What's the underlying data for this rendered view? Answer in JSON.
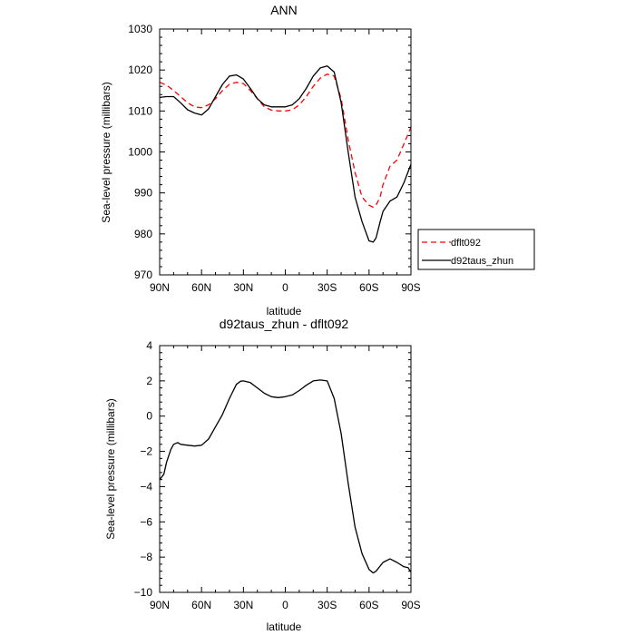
{
  "chart_data": [
    {
      "type": "line",
      "title": "ANN",
      "xlabel": "latitude",
      "ylabel": "Sea-level pressure (millibars)",
      "xlim": [
        90,
        -90
      ],
      "ylim": [
        970,
        1030
      ],
      "xticks": [
        90,
        60,
        30,
        0,
        -30,
        -60,
        -90
      ],
      "xtick_labels": [
        "90N",
        "60N",
        "30N",
        "0",
        "30S",
        "60S",
        "90S"
      ],
      "yticks": [
        970,
        980,
        990,
        1000,
        1010,
        1020,
        1030
      ],
      "ytick_labels": [
        "970",
        "980",
        "990",
        "1000",
        "1010",
        "1020",
        "1030"
      ],
      "legend": "right, outside plot",
      "series": [
        {
          "name": "dflt092",
          "color": "#ff0000",
          "dash": "dashed",
          "x": [
            90,
            85,
            80,
            75,
            70,
            65,
            60,
            55,
            50,
            45,
            40,
            35,
            30,
            25,
            20,
            15,
            10,
            5,
            0,
            -5,
            -10,
            -15,
            -20,
            -25,
            -30,
            -35,
            -40,
            -45,
            -50,
            -55,
            -60,
            -63,
            -65,
            -68,
            -70,
            -75,
            -80,
            -85,
            -90
          ],
          "values": [
            1017,
            1016.3,
            1015,
            1013.5,
            1012,
            1011,
            1010.8,
            1011.5,
            1013,
            1015,
            1016.5,
            1017,
            1016.7,
            1015,
            1013,
            1011,
            1010.2,
            1010,
            1010,
            1010.3,
            1011.5,
            1013.5,
            1016,
            1018,
            1019,
            1018.5,
            1013,
            1003,
            995,
            989,
            987,
            986.5,
            987,
            989,
            992,
            996.5,
            998,
            1002,
            1006
          ]
        },
        {
          "name": "d92taus_zhun",
          "color": "#000000",
          "dash": "solid",
          "x": [
            90,
            85,
            80,
            75,
            70,
            65,
            60,
            55,
            50,
            45,
            40,
            35,
            30,
            25,
            20,
            15,
            10,
            5,
            0,
            -5,
            -10,
            -15,
            -20,
            -25,
            -30,
            -35,
            -40,
            -45,
            -50,
            -55,
            -60,
            -63,
            -65,
            -68,
            -70,
            -75,
            -80,
            -85,
            -90
          ],
          "values": [
            1013.3,
            1013.5,
            1013.5,
            1012,
            1010.3,
            1009.5,
            1009,
            1010.5,
            1013.5,
            1016.5,
            1018.5,
            1018.8,
            1017.8,
            1015.5,
            1013,
            1011.5,
            1011,
            1011,
            1011,
            1011.5,
            1013,
            1015.5,
            1018.5,
            1020.5,
            1021,
            1019.5,
            1012,
            1000,
            989,
            983,
            978.3,
            978,
            979,
            983,
            985.5,
            988,
            989,
            992.5,
            997
          ]
        }
      ]
    },
    {
      "type": "line",
      "title": "d92taus_zhun - dflt092",
      "xlabel": "latitude",
      "ylabel": "Sea-level pressure (millibars)",
      "xlim": [
        90,
        -90
      ],
      "ylim": [
        -10,
        4
      ],
      "xticks": [
        90,
        60,
        30,
        0,
        -30,
        -60,
        -90
      ],
      "xtick_labels": [
        "90N",
        "60N",
        "30N",
        "0",
        "30S",
        "60S",
        "90S"
      ],
      "yticks": [
        -10,
        -8,
        -6,
        -4,
        -2,
        0,
        2,
        4
      ],
      "ytick_labels": [
        "−10",
        "−8",
        "−6",
        "−4",
        "−2",
        "0",
        "2",
        "4"
      ],
      "series": [
        {
          "color": "#000000",
          "dash": "solid",
          "x": [
            90,
            87,
            85,
            82,
            80,
            77,
            75,
            70,
            65,
            60,
            55,
            50,
            45,
            40,
            35,
            32,
            30,
            25,
            20,
            15,
            10,
            5,
            0,
            -5,
            -10,
            -15,
            -20,
            -25,
            -30,
            -35,
            -40,
            -45,
            -50,
            -55,
            -60,
            -63,
            -65,
            -70,
            -75,
            -80,
            -85,
            -88,
            -90
          ],
          "values": [
            -3.6,
            -3.3,
            -2.6,
            -1.9,
            -1.6,
            -1.5,
            -1.6,
            -1.65,
            -1.7,
            -1.65,
            -1.3,
            -0.6,
            0.1,
            1.0,
            1.8,
            1.98,
            2.0,
            1.9,
            1.6,
            1.3,
            1.1,
            1.05,
            1.1,
            1.2,
            1.45,
            1.75,
            2.0,
            2.05,
            2.0,
            1.0,
            -1.0,
            -3.8,
            -6.3,
            -7.8,
            -8.7,
            -8.9,
            -8.8,
            -8.3,
            -8.1,
            -8.3,
            -8.55,
            -8.6,
            -8.85
          ]
        }
      ]
    }
  ]
}
